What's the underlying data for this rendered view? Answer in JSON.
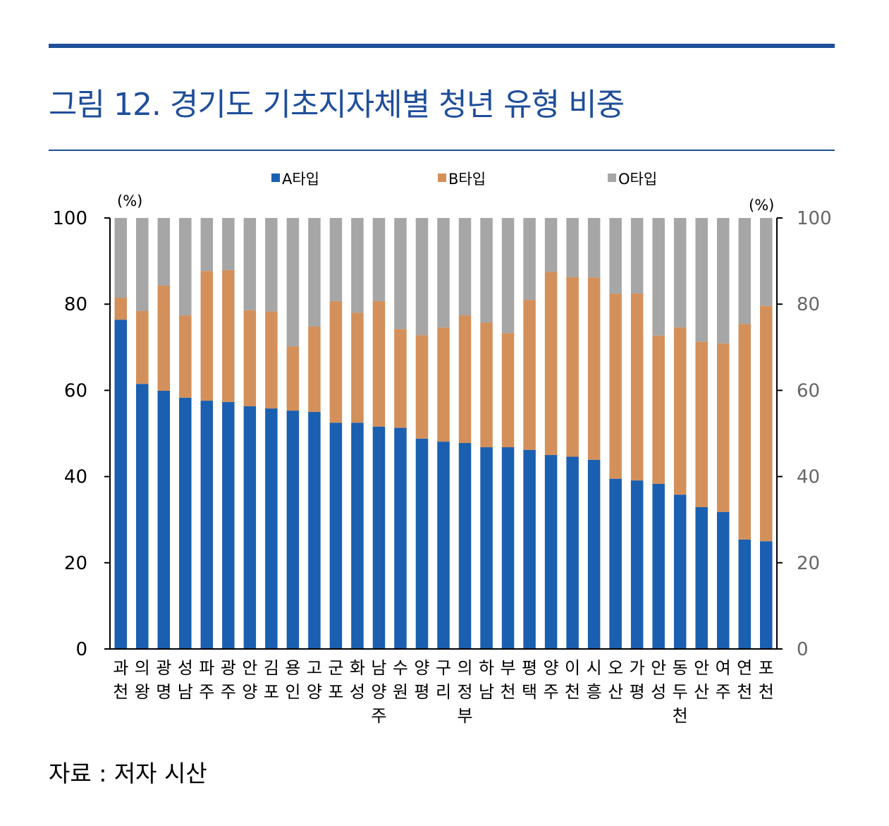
{
  "figure": {
    "title": "그림 12. 경기도 기초지자체별 청년 유형 비중",
    "source": "자료 : 저자 시산"
  },
  "chart_data": {
    "type": "bar",
    "stacked": true,
    "categories": [
      "과천",
      "의왕",
      "광명",
      "성남",
      "파주",
      "광주",
      "안양",
      "김포",
      "용인",
      "고양",
      "군포",
      "화성",
      "남양주",
      "수원",
      "양평",
      "구리",
      "의정부",
      "하남",
      "부천",
      "평택",
      "양주",
      "이천",
      "시흥",
      "오산",
      "가평",
      "안성",
      "동두천",
      "안산",
      "여주",
      "연천",
      "포천"
    ],
    "series": [
      {
        "name": "A타입",
        "color": "#1a5fb0",
        "values": [
          76.4,
          61.5,
          59.9,
          58.3,
          57.6,
          57.3,
          56.3,
          55.8,
          55.3,
          55.0,
          52.5,
          52.5,
          51.6,
          51.3,
          48.8,
          48.1,
          47.8,
          46.8,
          46.8,
          46.2,
          45.0,
          44.6,
          43.9,
          39.5,
          39.1,
          38.3,
          35.8,
          32.9,
          31.8,
          25.4,
          25.0
        ]
      },
      {
        "name": "B타입",
        "color": "#d4905a",
        "values": [
          5.1,
          16.9,
          24.4,
          19.1,
          30.1,
          30.6,
          22.3,
          22.5,
          14.9,
          19.8,
          28.2,
          25.5,
          29.1,
          22.9,
          24.0,
          26.5,
          29.6,
          28.9,
          26.5,
          34.8,
          42.5,
          41.7,
          42.3,
          42.9,
          43.4,
          34.4,
          38.8,
          38.4,
          39.1,
          50.0,
          54.6
        ]
      },
      {
        "name": "O타입",
        "color": "#a6a6a6",
        "values": [
          18.5,
          21.6,
          15.7,
          22.6,
          12.3,
          12.1,
          21.4,
          21.7,
          29.8,
          25.2,
          19.3,
          22.0,
          19.3,
          25.8,
          27.2,
          25.4,
          22.6,
          24.3,
          26.7,
          19.0,
          12.5,
          13.7,
          13.8,
          17.6,
          17.5,
          27.3,
          25.4,
          28.7,
          29.1,
          24.6,
          20.4
        ]
      }
    ],
    "ylim": [
      0,
      100
    ],
    "yticks": [
      0,
      20,
      40,
      60,
      80,
      100
    ],
    "yunit_left": "(%)",
    "yunit_right": "(%)",
    "legend_position": "top-center",
    "grid": false
  }
}
